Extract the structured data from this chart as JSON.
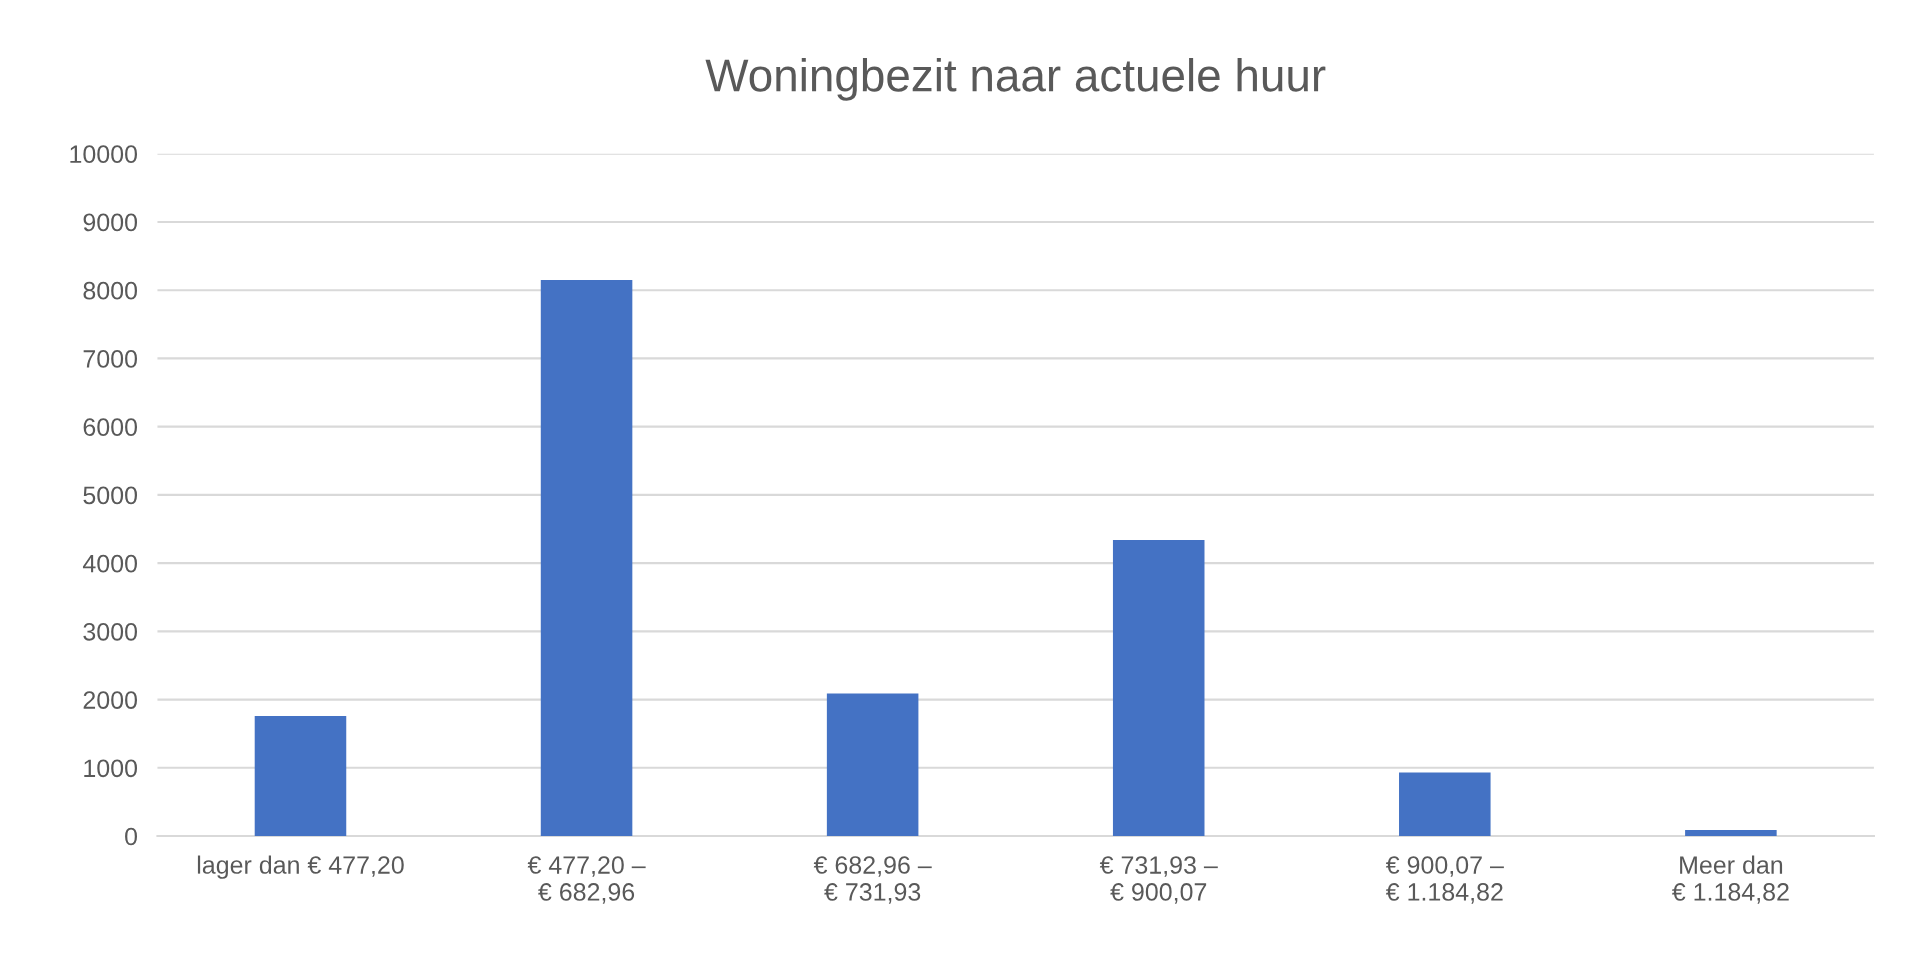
{
  "chart_data": {
    "type": "bar",
    "title": "Woningbezit naar actuele huur",
    "categories": [
      "lager dan € 477,20",
      "€ 477,20 –\n€ 682,96",
      "€ 682,96 –\n€ 731,93",
      "€ 731,93 –\n€ 900,07",
      "€ 900,07 –\n€ 1.184,82",
      "Meer dan\n€ 1.184,82"
    ],
    "values": [
      1760,
      8150,
      2090,
      4340,
      930,
      90
    ],
    "color": "#4472c4",
    "ylim": [
      0,
      10000
    ],
    "yticks": [
      0,
      1000,
      2000,
      3000,
      4000,
      5000,
      6000,
      7000,
      8000,
      9000,
      10000
    ],
    "grid": "y",
    "legend": false
  }
}
